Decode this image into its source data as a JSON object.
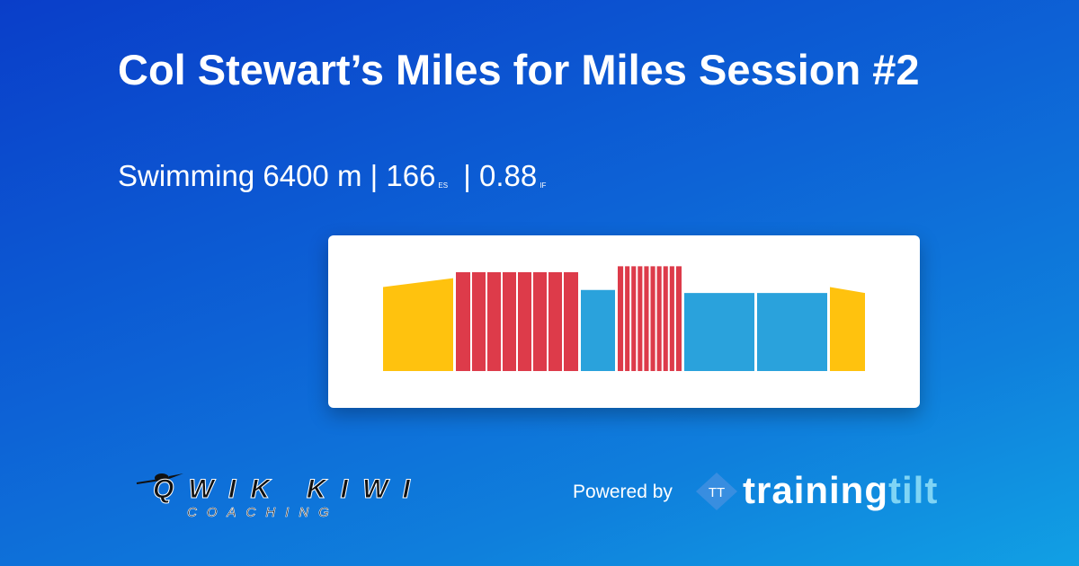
{
  "header": {
    "title": "Col Stewart’s Miles for Miles Session #2"
  },
  "summary": {
    "sport_distance": "Swimming 6400 m",
    "separator": "|",
    "stress_value": "166",
    "stress_unit": "ES",
    "intensity_value": "0.88",
    "intensity_unit": "IF"
  },
  "workout_chart": {
    "colors": {
      "warmup": "#ffc20e",
      "hard": "#dd3b4a",
      "steady": "#2aa2dc"
    },
    "blocks": [
      {
        "zone": "warmup",
        "width": 78,
        "level_start": 0.85,
        "level_end": 0.94,
        "splits": 1
      },
      {
        "zone": "hard",
        "width": 136,
        "level_start": 1.0,
        "level_end": 1.0,
        "splits": 8
      },
      {
        "zone": "steady",
        "width": 38,
        "level_start": 0.82,
        "level_end": 0.82,
        "splits": 1
      },
      {
        "zone": "hard",
        "width": 71,
        "level_start": 1.06,
        "level_end": 1.06,
        "splits": 10
      },
      {
        "zone": "steady",
        "width": 78,
        "level_start": 0.79,
        "level_end": 0.79,
        "splits": 1
      },
      {
        "zone": "steady",
        "width": 78,
        "level_start": 0.79,
        "level_end": 0.79,
        "splits": 1
      },
      {
        "zone": "warmup",
        "width": 39,
        "level_start": 0.85,
        "level_end": 0.79,
        "splits": 1
      }
    ]
  },
  "footer": {
    "coach_logo_word": "QWIK KIWI",
    "coach_logo_sub": "COACHING",
    "powered_by": "Powered by",
    "tt_mark": "TT",
    "brand_training": "training",
    "brand_tilt": "tilt"
  }
}
